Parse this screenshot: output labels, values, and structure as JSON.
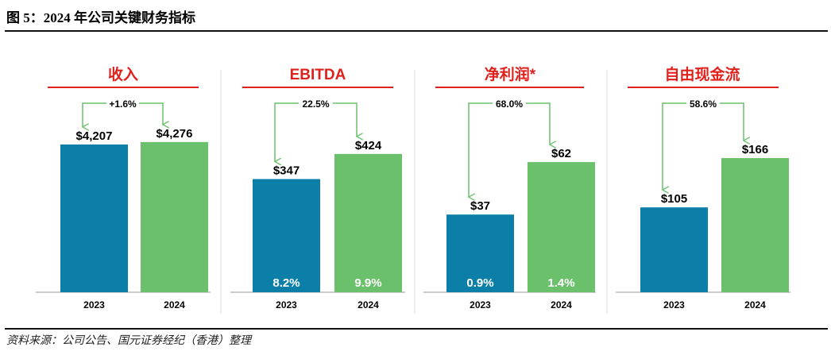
{
  "figure_title": "图 5：2024 年公司关键财务指标",
  "source_note": "资料来源：公司公告、国元证券经纪（香港）整理",
  "colors": {
    "bar_2023": "#0b7fa8",
    "bar_2024": "#6bc06b",
    "arrow": "#6bc06b",
    "title_text": "#e0201b",
    "title_rule": "#e0201b",
    "axis": "#999999",
    "divider": "#dddddd"
  },
  "chart_data": [
    {
      "type": "bar",
      "title": "收入",
      "categories": [
        "2023",
        "2024"
      ],
      "values": [
        4207,
        4276
      ],
      "value_labels": [
        "$4,207",
        "$4,276"
      ],
      "change_label": "+1.6%",
      "ylim": [
        0,
        5200
      ]
    },
    {
      "type": "bar",
      "title": "EBITDA",
      "categories": [
        "2023",
        "2024"
      ],
      "values": [
        347,
        424
      ],
      "value_labels": [
        "$347",
        "$424"
      ],
      "change_label": "22.5%",
      "margin_labels": [
        "8.2%",
        "9.9%"
      ],
      "ylim": [
        0,
        560
      ]
    },
    {
      "type": "bar",
      "title": "净利润*",
      "categories": [
        "2023",
        "2024"
      ],
      "values": [
        37,
        62
      ],
      "value_labels": [
        "$37",
        "$62"
      ],
      "change_label": "68.0%",
      "margin_labels": [
        "0.9%",
        "1.4%"
      ],
      "ylim": [
        0,
        87
      ]
    },
    {
      "type": "bar",
      "title": "自由现金流",
      "categories": [
        "2023",
        "2024"
      ],
      "values": [
        105,
        166
      ],
      "value_labels": [
        "$105",
        "$166"
      ],
      "change_label": "58.6%",
      "ylim": [
        0,
        226
      ]
    }
  ]
}
